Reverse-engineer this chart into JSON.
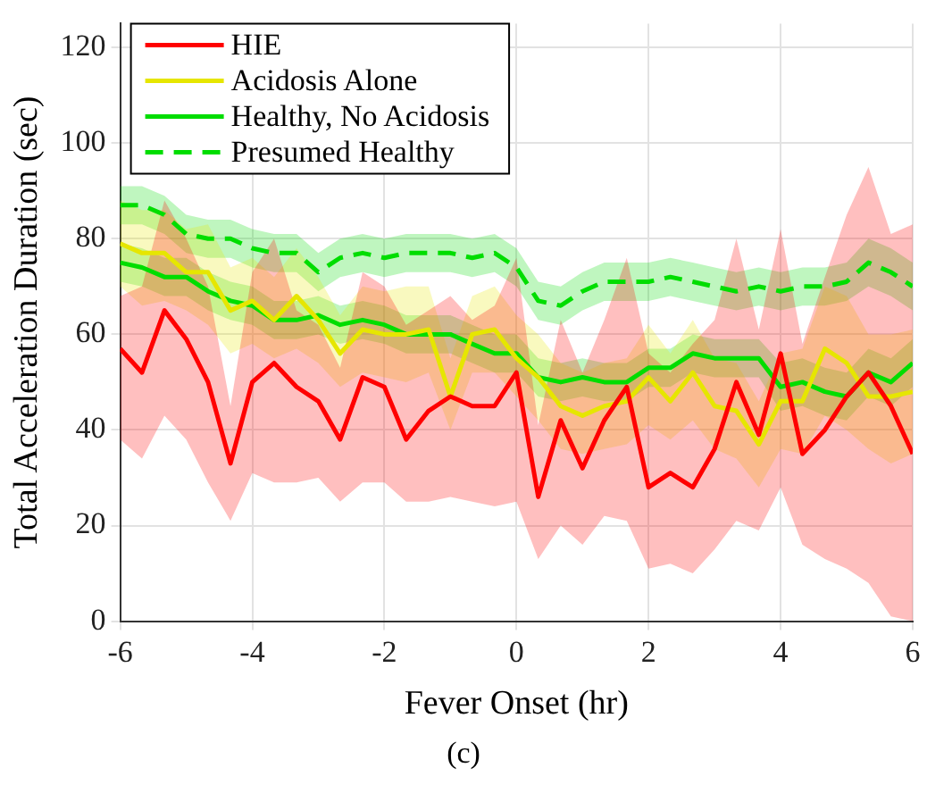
{
  "chart_data": {
    "type": "line",
    "xlabel": "Fever Onset (hr)",
    "ylabel": "Total Acceleration Duration (sec)",
    "annotations": [
      "(c)"
    ],
    "x": [
      -6,
      -5.67,
      -5.33,
      -5,
      -4.67,
      -4.33,
      -4,
      -3.67,
      -3.33,
      -3,
      -2.67,
      -2.33,
      -2,
      -1.67,
      -1.33,
      -1,
      -0.67,
      -0.33,
      0,
      0.33,
      0.67,
      1,
      1.33,
      1.67,
      2,
      2.33,
      2.67,
      3,
      3.33,
      3.67,
      4,
      4.33,
      4.67,
      5,
      5.33,
      5.67,
      6
    ],
    "xlim": [
      -6,
      6
    ],
    "xticks": [
      -6,
      -4,
      -2,
      0,
      2,
      4,
      6
    ],
    "ylim": [
      0,
      125
    ],
    "yticks": [
      0,
      20,
      40,
      60,
      80,
      100,
      120
    ],
    "grid": true,
    "legend": "top left",
    "marker": "none",
    "series": [
      {
        "name": "HIE",
        "color": "#ff0000",
        "line_style": "solid",
        "values": [
          57,
          52,
          65,
          59,
          50,
          33,
          50,
          54,
          49,
          46,
          38,
          51,
          49,
          38,
          44,
          47,
          45,
          45,
          52,
          26,
          42,
          32,
          42,
          49,
          28,
          31,
          28,
          36,
          50,
          39,
          56,
          35,
          40,
          47,
          52,
          45,
          35
        ],
        "lower": [
          38,
          34,
          43,
          38,
          29,
          21,
          31,
          29,
          29,
          30,
          25,
          29,
          29,
          25,
          25,
          26,
          25,
          24,
          25,
          13,
          20,
          16,
          22,
          21,
          11,
          12,
          10,
          15,
          21,
          19,
          28,
          16,
          13,
          11,
          8,
          1,
          0
        ],
        "upper": [
          68,
          70,
          88,
          80,
          70,
          45,
          73,
          80,
          65,
          62,
          53,
          73,
          70,
          62,
          65,
          68,
          63,
          66,
          76,
          41,
          63,
          52,
          63,
          76,
          56,
          52,
          58,
          63,
          80,
          61,
          82,
          58,
          72,
          85,
          95,
          81,
          83
        ]
      },
      {
        "name": "Acidosis Alone",
        "color": "#e6e600",
        "line_style": "solid",
        "values": [
          79,
          77,
          77,
          73,
          73,
          65,
          67,
          63,
          68,
          63,
          56,
          61,
          60,
          60,
          61,
          47,
          60,
          61,
          55,
          51,
          45,
          43,
          45,
          46,
          51,
          46,
          52,
          45,
          44,
          37,
          46,
          46,
          57,
          54,
          47,
          47,
          48
        ],
        "lower": [
          70,
          66,
          67,
          65,
          62,
          56,
          58,
          55,
          57,
          54,
          49,
          52,
          51,
          50,
          52,
          40,
          52,
          52,
          47,
          42,
          36,
          35,
          36,
          37,
          41,
          38,
          42,
          36,
          34,
          28,
          36,
          35,
          43,
          40,
          36,
          33,
          35
        ],
        "upper": [
          88,
          86,
          86,
          82,
          83,
          74,
          76,
          72,
          78,
          72,
          64,
          70,
          69,
          70,
          70,
          55,
          68,
          70,
          64,
          60,
          54,
          52,
          54,
          55,
          62,
          56,
          63,
          55,
          54,
          46,
          56,
          57,
          70,
          68,
          60,
          60,
          61
        ]
      },
      {
        "name": "Healthy, No Acidosis",
        "color": "#00dd00",
        "line_style": "solid",
        "values": [
          75,
          74,
          72,
          72,
          69,
          67,
          66,
          63,
          63,
          64,
          62,
          63,
          62,
          60,
          60,
          60,
          58,
          56,
          56,
          51,
          50,
          51,
          50,
          50,
          53,
          53,
          56,
          55,
          55,
          55,
          49,
          50,
          48,
          47,
          52,
          50,
          54
        ],
        "lower": [
          71,
          70,
          68,
          68,
          65,
          63,
          62,
          59,
          59,
          60,
          58,
          59,
          58,
          56,
          56,
          56,
          54,
          52,
          52,
          47,
          46,
          47,
          46,
          46,
          49,
          49,
          52,
          51,
          51,
          51,
          44,
          45,
          43,
          42,
          47,
          45,
          49
        ],
        "upper": [
          79,
          78,
          76,
          76,
          73,
          71,
          70,
          67,
          67,
          68,
          66,
          67,
          66,
          64,
          64,
          64,
          62,
          60,
          60,
          55,
          54,
          55,
          54,
          54,
          57,
          57,
          60,
          59,
          59,
          59,
          54,
          55,
          53,
          52,
          57,
          55,
          59
        ]
      },
      {
        "name": "Presumed Healthy",
        "color": "#00dd00",
        "line_style": "dashed",
        "values": [
          87,
          87,
          85,
          81,
          80,
          80,
          78,
          77,
          77,
          73,
          76,
          77,
          76,
          77,
          77,
          77,
          76,
          77,
          74,
          67,
          66,
          69,
          71,
          71,
          71,
          72,
          71,
          70,
          69,
          70,
          69,
          70,
          70,
          71,
          75,
          73,
          70
        ],
        "lower": [
          83,
          83,
          81,
          77,
          76,
          76,
          74,
          73,
          73,
          69,
          72,
          73,
          72,
          73,
          73,
          73,
          72,
          73,
          70,
          63,
          62,
          65,
          67,
          67,
          67,
          68,
          67,
          66,
          65,
          66,
          65,
          66,
          66,
          67,
          70,
          68,
          65
        ],
        "upper": [
          91,
          91,
          89,
          85,
          84,
          84,
          82,
          81,
          81,
          77,
          80,
          81,
          80,
          81,
          81,
          81,
          80,
          81,
          78,
          71,
          70,
          73,
          75,
          75,
          75,
          76,
          75,
          74,
          73,
          74,
          73,
          74,
          74,
          75,
          80,
          78,
          75
        ]
      }
    ]
  }
}
